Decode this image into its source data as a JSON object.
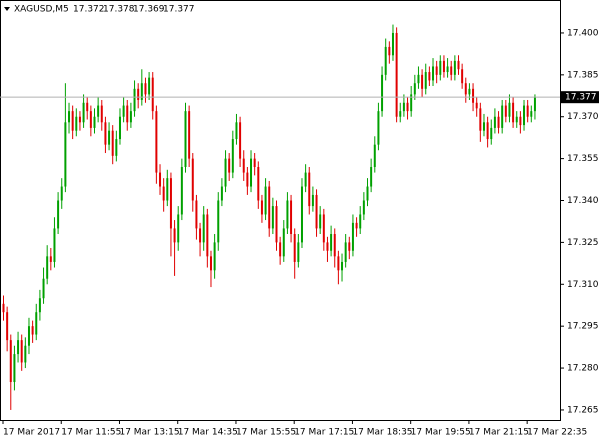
{
  "chart_data": {
    "type": "candlestick",
    "symbol": "XAGUSD,M5",
    "up_color": "#00a000",
    "down_color": "#e00000",
    "ylim": [
      17.2614,
      17.4118
    ],
    "yticks": [
      17.265,
      {
        "value": 17.28,
        "label": "17.280"
      },
      17.295,
      {
        "value": 17.31,
        "label": "17.310"
      },
      17.325,
      {
        "value": 17.34,
        "label": "17.340"
      },
      17.355,
      {
        "value": 17.37,
        "label": "17.370"
      },
      17.385,
      {
        "value": 17.4,
        "label": "17.400"
      }
    ],
    "xticks": [
      {
        "value": 0,
        "label": "17 Mar 2017"
      },
      {
        "value": 16,
        "label": "17 Mar 11:55"
      },
      {
        "value": 32,
        "label": "17 Mar 13:15"
      },
      {
        "value": 48,
        "label": "17 Mar 14:35"
      },
      {
        "value": 64,
        "label": "17 Mar 15:55"
      },
      {
        "value": 80,
        "label": "17 Mar 17:15"
      },
      {
        "value": 96,
        "label": "17 Mar 18:35"
      },
      {
        "value": 112,
        "label": "17 Mar 19:55"
      },
      {
        "value": 128,
        "label": "17 Mar 21:15"
      },
      {
        "value": 144,
        "label": "17 Mar 22:35"
      }
    ],
    "candles": [
      [
        17.303,
        17.306,
        17.297,
        17.3
      ],
      [
        17.3,
        17.302,
        17.286,
        17.29
      ],
      [
        17.29,
        17.292,
        17.265,
        17.275
      ],
      [
        17.275,
        17.288,
        17.272,
        17.285
      ],
      [
        17.285,
        17.293,
        17.282,
        17.29
      ],
      [
        17.29,
        17.292,
        17.279,
        17.282
      ],
      [
        17.282,
        17.291,
        17.28,
        17.288
      ],
      [
        17.288,
        17.298,
        17.285,
        17.295
      ],
      [
        17.295,
        17.297,
        17.289,
        17.292
      ],
      [
        17.292,
        17.303,
        17.29,
        17.3
      ],
      [
        17.3,
        17.308,
        17.297,
        17.305
      ],
      [
        17.305,
        17.316,
        17.303,
        17.312
      ],
      [
        17.312,
        17.324,
        17.31,
        17.32
      ],
      [
        17.32,
        17.323,
        17.315,
        17.318
      ],
      [
        17.318,
        17.334,
        17.316,
        17.33
      ],
      [
        17.33,
        17.343,
        17.328,
        17.34
      ],
      [
        17.34,
        17.348,
        17.337,
        17.345
      ],
      [
        17.345,
        17.382,
        17.343,
        17.368
      ],
      [
        17.368,
        17.375,
        17.364,
        17.372
      ],
      [
        17.372,
        17.374,
        17.362,
        17.365
      ],
      [
        17.365,
        17.373,
        17.363,
        17.37
      ],
      [
        17.37,
        17.372,
        17.365,
        17.368
      ],
      [
        17.368,
        17.378,
        17.366,
        17.375
      ],
      [
        17.375,
        17.377,
        17.369,
        17.372
      ],
      [
        17.372,
        17.374,
        17.363,
        17.366
      ],
      [
        17.366,
        17.373,
        17.364,
        17.37
      ],
      [
        17.37,
        17.377,
        17.368,
        17.374
      ],
      [
        17.374,
        17.376,
        17.365,
        17.368
      ],
      [
        17.368,
        17.37,
        17.357,
        17.36
      ],
      [
        17.36,
        17.368,
        17.358,
        17.365
      ],
      [
        17.365,
        17.367,
        17.353,
        17.356
      ],
      [
        17.356,
        17.365,
        17.354,
        17.362
      ],
      [
        17.362,
        17.373,
        17.36,
        17.37
      ],
      [
        17.37,
        17.377,
        17.368,
        17.374
      ],
      [
        17.374,
        17.376,
        17.365,
        17.368
      ],
      [
        17.368,
        17.375,
        17.366,
        17.372
      ],
      [
        17.372,
        17.383,
        17.37,
        17.38
      ],
      [
        17.38,
        17.382,
        17.373,
        17.376
      ],
      [
        17.376,
        17.387,
        17.374,
        17.382
      ],
      [
        17.382,
        17.384,
        17.375,
        17.378
      ],
      [
        17.378,
        17.386,
        17.376,
        17.384
      ],
      [
        17.384,
        17.386,
        17.369,
        17.372
      ],
      [
        17.372,
        17.374,
        17.346,
        17.35
      ],
      [
        17.35,
        17.353,
        17.342,
        17.345
      ],
      [
        17.345,
        17.348,
        17.336,
        17.34
      ],
      [
        17.34,
        17.351,
        17.338,
        17.348
      ],
      [
        17.348,
        17.35,
        17.32,
        17.33
      ],
      [
        17.33,
        17.333,
        17.313,
        17.325
      ],
      [
        17.325,
        17.338,
        17.322,
        17.335
      ],
      [
        17.335,
        17.355,
        17.333,
        17.352
      ],
      [
        17.352,
        17.375,
        17.35,
        17.372
      ],
      [
        17.372,
        17.374,
        17.352,
        17.355
      ],
      [
        17.355,
        17.357,
        17.336,
        17.34
      ],
      [
        17.34,
        17.342,
        17.326,
        17.33
      ],
      [
        17.33,
        17.332,
        17.32,
        17.325
      ],
      [
        17.325,
        17.338,
        17.322,
        17.335
      ],
      [
        17.335,
        17.337,
        17.316,
        17.32
      ],
      [
        17.32,
        17.322,
        17.309,
        17.315
      ],
      [
        17.315,
        17.328,
        17.312,
        17.325
      ],
      [
        17.325,
        17.343,
        17.322,
        17.34
      ],
      [
        17.34,
        17.348,
        17.338,
        17.345
      ],
      [
        17.345,
        17.358,
        17.343,
        17.355
      ],
      [
        17.355,
        17.357,
        17.347,
        17.35
      ],
      [
        17.35,
        17.365,
        17.348,
        17.362
      ],
      [
        17.362,
        17.371,
        17.36,
        17.368
      ],
      [
        17.368,
        17.37,
        17.352,
        17.355
      ],
      [
        17.355,
        17.358,
        17.347,
        17.35
      ],
      [
        17.35,
        17.352,
        17.342,
        17.345
      ],
      [
        17.345,
        17.358,
        17.343,
        17.355
      ],
      [
        17.355,
        17.357,
        17.349,
        17.352
      ],
      [
        17.352,
        17.354,
        17.337,
        17.34
      ],
      [
        17.34,
        17.342,
        17.332,
        17.335
      ],
      [
        17.335,
        17.348,
        17.333,
        17.345
      ],
      [
        17.345,
        17.347,
        17.327,
        17.33
      ],
      [
        17.33,
        17.341,
        17.328,
        17.338
      ],
      [
        17.338,
        17.34,
        17.322,
        17.325
      ],
      [
        17.325,
        17.327,
        17.317,
        17.32
      ],
      [
        17.32,
        17.333,
        17.318,
        17.33
      ],
      [
        17.33,
        17.343,
        17.328,
        17.34
      ],
      [
        17.34,
        17.342,
        17.325,
        17.328
      ],
      [
        17.328,
        17.33,
        17.312,
        17.318
      ],
      [
        17.318,
        17.328,
        17.316,
        17.325
      ],
      [
        17.325,
        17.348,
        17.323,
        17.345
      ],
      [
        17.345,
        17.353,
        17.343,
        17.35
      ],
      [
        17.35,
        17.352,
        17.335,
        17.338
      ],
      [
        17.338,
        17.345,
        17.336,
        17.342
      ],
      [
        17.342,
        17.344,
        17.327,
        17.33
      ],
      [
        17.33,
        17.338,
        17.328,
        17.335
      ],
      [
        17.335,
        17.337,
        17.322,
        17.325
      ],
      [
        17.325,
        17.327,
        17.318,
        17.322
      ],
      [
        17.322,
        17.331,
        17.32,
        17.328
      ],
      [
        17.328,
        17.33,
        17.316,
        17.32
      ],
      [
        17.32,
        17.322,
        17.31,
        17.315
      ],
      [
        17.315,
        17.321,
        17.311,
        17.318
      ],
      [
        17.318,
        17.328,
        17.316,
        17.325
      ],
      [
        17.325,
        17.327,
        17.319,
        17.322
      ],
      [
        17.322,
        17.335,
        17.32,
        17.332
      ],
      [
        17.332,
        17.334,
        17.327,
        17.33
      ],
      [
        17.33,
        17.338,
        17.328,
        17.335
      ],
      [
        17.335,
        17.343,
        17.333,
        17.34
      ],
      [
        17.34,
        17.348,
        17.338,
        17.345
      ],
      [
        17.345,
        17.355,
        17.343,
        17.352
      ],
      [
        17.352,
        17.363,
        17.35,
        17.36
      ],
      [
        17.36,
        17.375,
        17.358,
        17.372
      ],
      [
        17.372,
        17.388,
        17.37,
        17.385
      ],
      [
        17.385,
        17.398,
        17.383,
        17.395
      ],
      [
        17.395,
        17.397,
        17.389,
        17.392
      ],
      [
        17.392,
        17.403,
        17.39,
        17.4
      ],
      [
        17.4,
        17.402,
        17.368,
        17.37
      ],
      [
        17.37,
        17.375,
        17.368,
        17.372
      ],
      [
        17.372,
        17.378,
        17.37,
        17.375
      ],
      [
        17.375,
        17.377,
        17.369,
        17.372
      ],
      [
        17.372,
        17.381,
        17.37,
        17.378
      ],
      [
        17.378,
        17.385,
        17.376,
        17.382
      ],
      [
        17.382,
        17.388,
        17.38,
        17.385
      ],
      [
        17.385,
        17.387,
        17.377,
        17.38
      ],
      [
        17.38,
        17.389,
        17.378,
        17.386
      ],
      [
        17.386,
        17.388,
        17.381,
        17.383
      ],
      [
        17.383,
        17.391,
        17.381,
        17.388
      ],
      [
        17.388,
        17.39,
        17.382,
        17.385
      ],
      [
        17.385,
        17.392,
        17.383,
        17.39
      ],
      [
        17.39,
        17.392,
        17.384,
        17.386
      ],
      [
        17.386,
        17.391,
        17.384,
        17.388
      ],
      [
        17.388,
        17.39,
        17.383,
        17.385
      ],
      [
        17.385,
        17.392,
        17.383,
        17.39
      ],
      [
        17.39,
        17.392,
        17.385,
        17.387
      ],
      [
        17.387,
        17.389,
        17.38,
        17.382
      ],
      [
        17.382,
        17.384,
        17.375,
        17.378
      ],
      [
        17.378,
        17.382,
        17.376,
        17.38
      ],
      [
        17.38,
        17.382,
        17.372,
        17.375
      ],
      [
        17.375,
        17.377,
        17.37,
        17.373
      ],
      [
        17.373,
        17.375,
        17.361,
        17.365
      ],
      [
        17.365,
        17.371,
        17.363,
        17.368
      ],
      [
        17.368,
        17.37,
        17.359,
        17.362
      ],
      [
        17.362,
        17.369,
        17.36,
        17.366
      ],
      [
        17.366,
        17.373,
        17.364,
        17.37
      ],
      [
        17.37,
        17.372,
        17.364,
        17.366
      ],
      [
        17.366,
        17.376,
        17.364,
        17.374
      ],
      [
        17.374,
        17.376,
        17.368,
        17.37
      ],
      [
        17.37,
        17.378,
        17.368,
        17.375
      ],
      [
        17.375,
        17.377,
        17.366,
        17.368
      ],
      [
        17.368,
        17.372,
        17.366,
        17.37
      ],
      [
        17.37,
        17.372,
        17.364,
        17.367
      ],
      [
        17.367,
        17.376,
        17.365,
        17.374
      ],
      [
        17.374,
        17.376,
        17.368,
        17.37
      ],
      [
        17.37,
        17.374,
        17.368,
        17.372
      ],
      [
        17.372,
        17.378,
        17.369,
        17.377
      ]
    ]
  }
}
